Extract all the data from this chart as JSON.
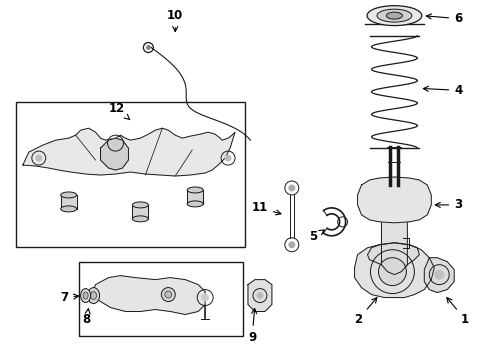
{
  "bg_color": "#ffffff",
  "line_color": "#1a1a1a",
  "fig_width": 4.9,
  "fig_height": 3.6,
  "dpi": 100,
  "label_fontsize": 8.5,
  "label_fontweight": "bold"
}
